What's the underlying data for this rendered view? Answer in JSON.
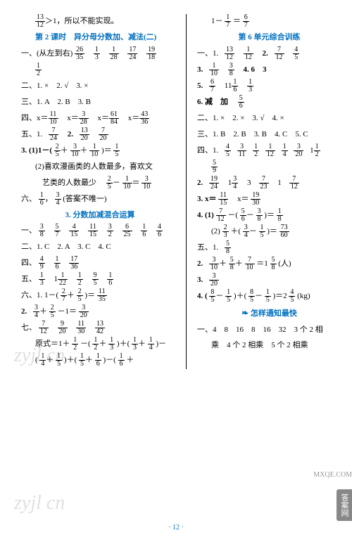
{
  "watermark": "zyjl cn",
  "pagenum": "· 12 ·",
  "badge": "答案网",
  "badge2": "MXQE.COM",
  "left": {
    "l1a": "13",
    "l1b": "12",
    "l1c": "＞1，所以不能实现。",
    "h1": "第 2 课时　异分母分数加、减法(二)",
    "l2a": "一、(从左到右)",
    "f2a_n": "26",
    "f2a_d": "35",
    "f2b_n": "1",
    "f2b_d": "3",
    "f2c_n": "1",
    "f2c_d": "28",
    "f2d_n": "17",
    "f2d_d": "24",
    "f2e_n": "19",
    "f2e_d": "18",
    "f3_n": "1",
    "f3_d": "2",
    "l4": "二、1. ×　2. √　3. ×",
    "l5": "三、1. A　2. B　3. B",
    "l6a": "四、x＝",
    "f6a_n": "11",
    "f6a_d": "10",
    "f6b_n": "3",
    "f6b_d": "28",
    "f6c_n": "61",
    "f6c_d": "84",
    "f6d_n": "43",
    "f6d_d": "36",
    "l7a": "五、1.",
    "f7a_n": "7",
    "f7a_d": "24",
    "l7b": "2.",
    "f7b_n": "13",
    "f7b_d": "20",
    "f7c_n": "7",
    "f7c_d": "20",
    "l8a": "3. (1)1－(",
    "f8a_n": "2",
    "f8a_d": "5",
    "f8b_n": "3",
    "f8b_d": "10",
    "f8c_n": "1",
    "f8c_d": "10",
    "l8b": ")＝",
    "f8d_n": "1",
    "f8d_d": "5",
    "l9": "(2)喜欢漫画类的人数最多，喜欢文",
    "l10a": "艺类的人数最少　",
    "f10a_n": "2",
    "f10a_d": "5",
    "f10b_n": "1",
    "f10b_d": "10",
    "f10c_n": "3",
    "f10c_d": "10",
    "l11a": "六、",
    "f11a_n": "1",
    "f11a_d": "6",
    "f11b_n": "3",
    "f11b_d": "4",
    "l11b": "(答案不唯一)",
    "h2": "3. 分数加减混合运算",
    "l12a": "一、",
    "f12a_n": "3",
    "f12a_d": "8",
    "f12b_n": "5",
    "f12b_d": "7",
    "f12c_n": "4",
    "f12c_d": "15",
    "f12d_n": "11",
    "f12d_d": "15",
    "f12e_n": "3",
    "f12e_d": "2",
    "f12f_n": "6",
    "f12f_d": "25",
    "f12g_n": "1",
    "f12g_d": "6",
    "f12h_n": "4",
    "f12h_d": "6",
    "l13": "二、1. C　2. A　3. C　4. C",
    "l14a": "四、",
    "f14a_n": "4",
    "f14a_d": "9",
    "f14b_n": "1",
    "f14b_d": "6",
    "f14c_n": "17",
    "f14c_d": "36",
    "l15a": "五、",
    "f15a_n": "1",
    "f15a_d": "3",
    "l15b": "1",
    "f15b_n": "1",
    "f15b_d": "22",
    "f15c_n": "1",
    "f15c_d": "2",
    "f15d_n": "9",
    "f15d_d": "5",
    "f15e_n": "1",
    "f15e_d": "6",
    "l16a": "六、1. 1－(",
    "f16a_n": "2",
    "f16a_d": "7",
    "f16b_n": "2",
    "f16b_d": "5",
    "l16b": ")＝",
    "f16c_n": "11",
    "f16c_d": "35",
    "l17a": "2.",
    "f17a_n": "3",
    "f17a_d": "4",
    "f17b_n": "2",
    "f17b_d": "5",
    "l17b": "－1＝",
    "f17c_n": "3",
    "f17c_d": "20",
    "l18a": "七、",
    "f18a_n": "7",
    "f18a_d": "12",
    "f18b_n": "9",
    "f18b_d": "20",
    "f18c_n": "11",
    "f18c_d": "30",
    "f18d_n": "13",
    "f18d_d": "42",
    "l19a": "原式＝1＋",
    "f19a_n": "1",
    "f19a_d": "2",
    "l19b": "－(",
    "f19b_n": "1",
    "f19b_d": "2",
    "f19c_n": "1",
    "f19c_d": "3",
    "l19c": ")＋(",
    "f19d_n": "1",
    "f19d_d": "3",
    "f19e_n": "1",
    "f19e_d": "4",
    "l19d": ")－",
    "l20a": "(",
    "f20a_n": "1",
    "f20a_d": "4",
    "f20b_n": "1",
    "f20b_d": "5",
    "l20b": ")＋(",
    "f20c_n": "1",
    "f20c_d": "5",
    "f20d_n": "1",
    "f20d_d": "6",
    "l20c": ")－(",
    "f20e_n": "1",
    "f20e_d": "6",
    "l20d": "＋"
  },
  "right": {
    "l1a": "1－",
    "f1a_n": "1",
    "f1a_d": "7",
    "l1b": "＝",
    "f1b_n": "6",
    "f1b_d": "7",
    "h1": "第 6 单元综合训练",
    "l2a": "一、1.",
    "f2a_n": "13",
    "f2a_d": "12",
    "f2b_n": "1",
    "f2b_d": "12",
    "l2b": "2.",
    "f2c_n": "7",
    "f2c_d": "12",
    "f2d_n": "4",
    "f2d_d": "5",
    "l3a": "3.",
    "f3a_n": "1",
    "f3a_d": "10",
    "f3b_n": "3",
    "f3b_d": "8",
    "l3b": "4. 6　3",
    "l4a": "5.",
    "f4a_n": "6",
    "f4a_d": "7",
    "l4b": "11",
    "f4b_n": "1",
    "f4b_d": "6",
    "f4c_n": "1",
    "f4c_d": "3",
    "l5a": "6. 减　加　",
    "f5a_n": "5",
    "f5a_d": "6",
    "l6": "二、1. ×　2. ×　3. √　4. ×",
    "l7": "三、1. B　2. B　3. B　4. C　5. C",
    "l8a": "四、1.",
    "f8a_n": "4",
    "f8a_d": "5",
    "f8b_n": "3",
    "f8b_d": "11",
    "f8c_n": "1",
    "f8c_d": "2",
    "f8d_n": "1",
    "f8d_d": "12",
    "f8e_n": "1",
    "f8e_d": "4",
    "f8f_n": "3",
    "f8f_d": "20",
    "l8b": "1",
    "f8g_n": "1",
    "f8g_d": "2",
    "f9_n": "5",
    "f9_d": "9",
    "l10a": "2.",
    "f10a_n": "19",
    "f10a_d": "24",
    "l10b": "1",
    "f10b_n": "3",
    "f10b_d": "4",
    "l10c": "3　",
    "f10c_n": "7",
    "f10c_d": "23",
    "l10d": "1　",
    "f10d_n": "7",
    "f10d_d": "12",
    "l11a": "3. x＝",
    "f11a_n": "11",
    "f11a_d": "15",
    "l11b": "x＝",
    "f11b_n": "19",
    "f11b_d": "30",
    "l12a": "4. (1)",
    "f12a_n": "7",
    "f12a_d": "12",
    "l12b": "－(",
    "f12b_n": "5",
    "f12b_d": "6",
    "f12c_n": "3",
    "f12c_d": "8",
    "l12c": ")＝",
    "f12d_n": "1",
    "f12d_d": "8",
    "l13a": "(2)",
    "f13a_n": "2",
    "f13a_d": "3",
    "l13b": "＋(",
    "f13b_n": "3",
    "f13b_d": "4",
    "f13c_n": "1",
    "f13c_d": "5",
    "l13c": ")＝",
    "f13d_n": "73",
    "f13d_d": "60",
    "l14a": "五、1.",
    "f14a_n": "5",
    "f14a_d": "8",
    "l15a": "2.",
    "f15a_n": "3",
    "f15a_d": "10",
    "f15b_n": "5",
    "f15b_d": "8",
    "f15c_n": "7",
    "f15c_d": "10",
    "l15b": "＝1",
    "f15d_n": "5",
    "f15d_d": "8",
    "l15c": "(人)",
    "l16a": "3.",
    "f16a_n": "3",
    "f16a_d": "20",
    "l17a": "4. (",
    "f17a_n": "8",
    "f17a_d": "5",
    "f17b_n": "1",
    "f17b_d": "5",
    "l17b": ")＋(",
    "f17c_n": "8",
    "f17c_d": "5",
    "f17d_n": "1",
    "f17d_d": "5",
    "l17c": ")＝2",
    "f17e_n": "4",
    "f17e_d": "5",
    "l17d": "(kg)",
    "h2": "怎样通知最快",
    "l18": "一、4　8　16　8　16　32　3 个 2 相",
    "l19": "乘　4 个 2 相乘　5 个 2 相乘"
  }
}
